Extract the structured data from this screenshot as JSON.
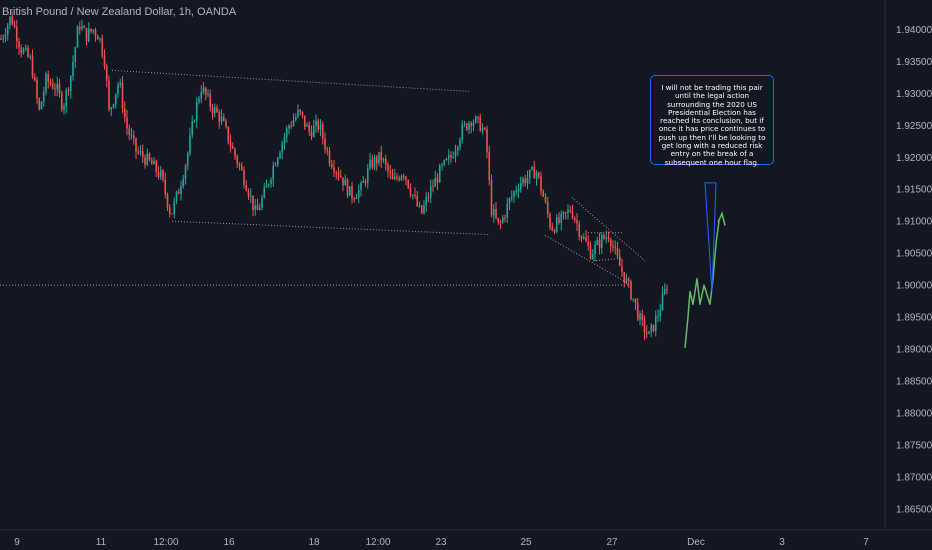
{
  "header": {
    "title": "British Pound / New Zealand Dollar, 1h, OANDA"
  },
  "annotation": {
    "text": "I will not be trading this pair until the legal action surrounding the 2020 US Presidential Election has reached its conclusion, but if once it has price continues to push up then I'll be looking to get long with a reduced risk entry on the break of a subsequent one hour flag."
  },
  "colors": {
    "background": "#131722",
    "up": "#26a69a",
    "down": "#ef5350",
    "text": "#b2b5be",
    "guide_line": "#9598a1",
    "projection": "#66bb6a",
    "callout_border": "#2962ff"
  },
  "chart_data": {
    "type": "candlestick",
    "title": "British Pound / New Zealand Dollar, 1h, OANDA",
    "ylim": [
      1.8617,
      1.9446
    ],
    "y_ticks": [
      "1.94000",
      "1.93500",
      "1.93000",
      "1.92500",
      "1.92000",
      "1.91500",
      "1.91000",
      "1.90500",
      "1.90000",
      "1.89500",
      "1.89000",
      "1.88500",
      "1.88000",
      "1.87500",
      "1.87000",
      "1.86500"
    ],
    "x_ticks": [
      "9",
      "11",
      "12:00",
      "16",
      "18",
      "12:00",
      "23",
      "25",
      "27",
      "Dec",
      "3",
      "7"
    ],
    "horizontal_level": 1.9,
    "price_path": [
      [
        0,
        1.9385
      ],
      [
        10,
        1.942
      ],
      [
        20,
        1.937
      ],
      [
        30,
        1.935
      ],
      [
        38,
        1.927
      ],
      [
        45,
        1.932
      ],
      [
        55,
        1.931
      ],
      [
        62,
        1.928
      ],
      [
        70,
        1.933
      ],
      [
        78,
        1.941
      ],
      [
        85,
        1.939
      ],
      [
        92,
        1.94
      ],
      [
        98,
        1.939
      ],
      [
        104,
        1.935
      ],
      [
        108,
        1.927
      ],
      [
        112,
        1.929
      ],
      [
        118,
        1.932
      ],
      [
        125,
        1.925
      ],
      [
        135,
        1.921
      ],
      [
        150,
        1.919
      ],
      [
        160,
        1.917
      ],
      [
        170,
        1.911
      ],
      [
        178,
        1.915
      ],
      [
        186,
        1.92
      ],
      [
        194,
        1.927
      ],
      [
        200,
        1.931
      ],
      [
        210,
        1.928
      ],
      [
        220,
        1.926
      ],
      [
        232,
        1.921
      ],
      [
        245,
        1.916
      ],
      [
        255,
        1.911
      ],
      [
        265,
        1.915
      ],
      [
        275,
        1.92
      ],
      [
        288,
        1.925
      ],
      [
        298,
        1.927
      ],
      [
        308,
        1.924
      ],
      [
        318,
        1.925
      ],
      [
        328,
        1.92
      ],
      [
        340,
        1.917
      ],
      [
        350,
        1.914
      ],
      [
        360,
        1.915
      ],
      [
        370,
        1.919
      ],
      [
        380,
        1.92
      ],
      [
        392,
        1.916
      ],
      [
        402,
        1.918
      ],
      [
        412,
        1.914
      ],
      [
        420,
        1.911
      ],
      [
        430,
        1.915
      ],
      [
        440,
        1.918
      ],
      [
        450,
        1.92
      ],
      [
        460,
        1.924
      ],
      [
        470,
        1.926
      ],
      [
        480,
        1.925
      ],
      [
        485,
        1.923
      ],
      [
        490,
        1.912
      ],
      [
        498,
        1.909
      ],
      [
        508,
        1.913
      ],
      [
        518,
        1.916
      ],
      [
        528,
        1.917
      ],
      [
        535,
        1.918
      ],
      [
        542,
        1.914
      ],
      [
        550,
        1.909
      ],
      [
        560,
        1.91
      ],
      [
        570,
        1.912
      ],
      [
        580,
        1.908
      ],
      [
        590,
        1.905
      ],
      [
        600,
        1.907
      ],
      [
        608,
        1.908
      ],
      [
        616,
        1.904
      ],
      [
        624,
        1.901
      ],
      [
        632,
        1.898
      ],
      [
        640,
        1.894
      ],
      [
        648,
        1.892
      ],
      [
        656,
        1.895
      ],
      [
        662,
        1.898
      ],
      [
        668,
        1.901
      ]
    ],
    "trend_lines": [
      [
        [
          112,
          1.9336
        ],
        [
          469,
          1.9303
        ]
      ],
      [
        [
          172,
          1.91
        ],
        [
          490,
          1.9079
        ]
      ],
      [
        [
          572,
          1.9137
        ],
        [
          645,
          1.9038
        ]
      ],
      [
        [
          545,
          1.9078
        ],
        [
          630,
          1.9001
        ]
      ],
      [
        [
          588,
          1.9082
        ],
        [
          622,
          1.9082
        ]
      ],
      [
        [
          593,
          1.9038
        ],
        [
          622,
          1.9042
        ]
      ]
    ],
    "projection_path": [
      [
        685,
        1.8902
      ],
      [
        688,
        1.895
      ],
      [
        690,
        1.899
      ],
      [
        693,
        1.897
      ],
      [
        697,
        1.901
      ],
      [
        700,
        1.897
      ],
      [
        704,
        1.9
      ],
      [
        707,
        1.8985
      ],
      [
        710,
        1.897
      ],
      [
        713,
        1.901
      ],
      [
        716,
        1.9065
      ],
      [
        719,
        1.91
      ]
    ],
    "projection_arrow_tip": [
      722,
      1.9112
    ],
    "callout_pointer": [
      [
        705,
        1.916
      ],
      [
        712,
        1.899
      ],
      [
        716,
        1.916
      ]
    ]
  }
}
